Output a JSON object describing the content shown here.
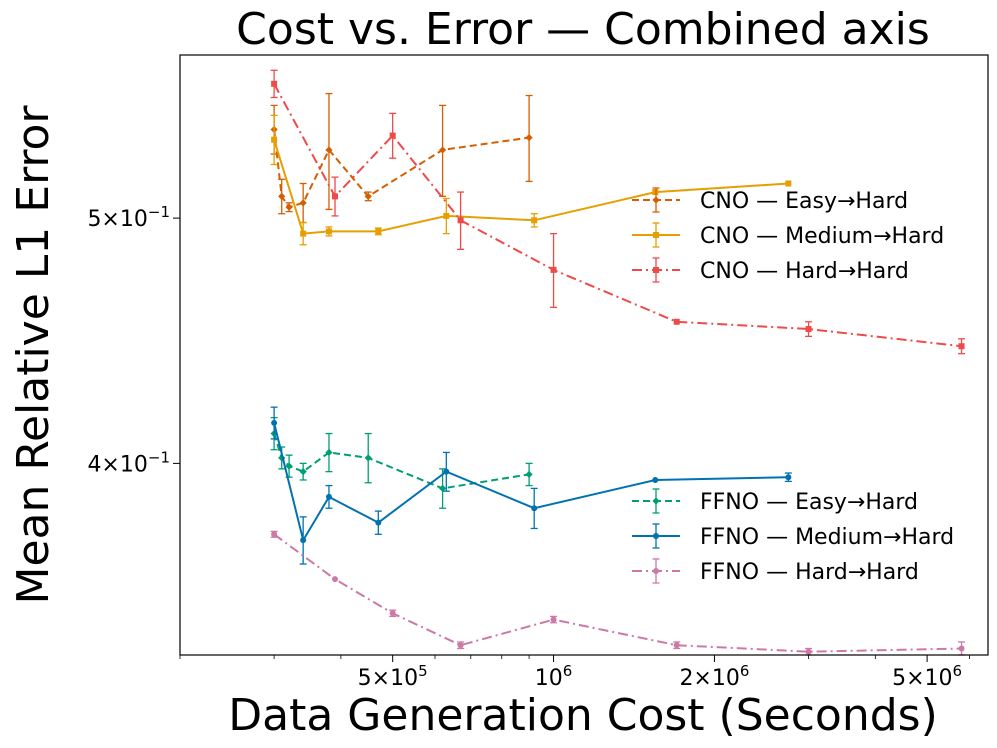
{
  "chart_data": {
    "type": "line",
    "title": "Cost vs. Error — Combined axis",
    "xlabel": "Data Generation Cost (Seconds)",
    "ylabel": "Mean Relative L1 Error",
    "xscale": "log",
    "yscale": "log",
    "xlim": [
      200000,
      6500000
    ],
    "ylim": [
      0.336,
      0.58
    ],
    "x_ticks": [
      {
        "value": 500000,
        "mantissa": "5×10",
        "exp": "5"
      },
      {
        "value": 1000000,
        "mantissa": "10",
        "exp": "6"
      },
      {
        "value": 2000000,
        "mantissa": "2×10",
        "exp": "6"
      },
      {
        "value": 5000000,
        "mantissa": "5×10",
        "exp": "6"
      }
    ],
    "y_ticks": [
      {
        "value": 0.4,
        "mantissa": "4×10",
        "exp": "−1"
      },
      {
        "value": 0.5,
        "mantissa": "5×10",
        "exp": "−1"
      }
    ],
    "legends": [
      {
        "placement": "right-middle",
        "entries": [
          "CNO  — Easy→Hard",
          "CNO  — Medium→Hard",
          "CNO  — Hard→Hard"
        ]
      },
      {
        "placement": "right-bottom",
        "entries": [
          "FFNO — Easy→Hard",
          "FFNO — Medium→Hard",
          "FFNO — Hard→Hard"
        ]
      }
    ],
    "series": [
      {
        "name": "CNO  — Easy→Hard",
        "color": "#d55e00",
        "dash": "dashed",
        "marker": "diamond",
        "x": [
          300000,
          310000,
          320000,
          340000,
          380000,
          450000,
          620000,
          900000
        ],
        "y": [
          0.542,
          0.51,
          0.505,
          0.507,
          0.532,
          0.51,
          0.532,
          0.538
        ],
        "err": [
          0.012,
          0.008,
          0.002,
          0.009,
          0.028,
          0.002,
          0.022,
          0.021
        ]
      },
      {
        "name": "CNO  — Medium→Hard",
        "color": "#e69f00",
        "dash": "solid",
        "marker": "square",
        "x": [
          300000,
          340000,
          380000,
          470000,
          630000,
          920000,
          1550000,
          2750000
        ],
        "y": [
          0.537,
          0.493,
          0.494,
          0.494,
          0.501,
          0.499,
          0.512,
          0.516
        ],
        "err": [
          0.012,
          0.005,
          0.002,
          0.0015,
          0.008,
          0.003,
          0.0,
          0.0
        ]
      },
      {
        "name": "CNO  — Hard→Hard",
        "color": "#ef4a4a",
        "dash": "dashdot",
        "marker": "square",
        "x": [
          300000,
          390000,
          500000,
          670000,
          1000000,
          1700000,
          3000000,
          5800000
        ],
        "y": [
          0.565,
          0.51,
          0.539,
          0.499,
          0.477,
          0.455,
          0.452,
          0.445
        ],
        "err": [
          0.007,
          0.009,
          0.011,
          0.013,
          0.016,
          0.0,
          0.003,
          0.003
        ]
      },
      {
        "name": "FFNO — Easy→Hard",
        "color": "#009e73",
        "dash": "dashed",
        "marker": "diamond",
        "x": [
          300000,
          310000,
          320000,
          340000,
          380000,
          450000,
          620000,
          900000
        ],
        "y": [
          0.411,
          0.402,
          0.399,
          0.397,
          0.404,
          0.402,
          0.391,
          0.396
        ],
        "err": [
          0.006,
          0.004,
          0.004,
          0.003,
          0.007,
          0.009,
          0.007,
          0.004
        ]
      },
      {
        "name": "FFNO — Medium→Hard",
        "color": "#0072b2",
        "dash": "solid",
        "marker": "circle",
        "x": [
          300000,
          340000,
          380000,
          470000,
          630000,
          920000,
          1550000,
          2750000
        ],
        "y": [
          0.415,
          0.373,
          0.388,
          0.379,
          0.397,
          0.384,
          0.394,
          0.395
        ],
        "err": [
          0.006,
          0.008,
          0.004,
          0.004,
          0.007,
          0.007,
          0.0,
          0.0015
        ]
      },
      {
        "name": "FFNO — Hard→Hard",
        "color": "#cc79a7",
        "dash": "dashdot",
        "marker": "circle",
        "x": [
          300000,
          390000,
          500000,
          670000,
          1000000,
          1700000,
          3000000,
          5800000
        ],
        "y": [
          0.375,
          0.36,
          0.349,
          0.339,
          0.347,
          0.339,
          0.337,
          0.338
        ],
        "err": [
          0.001,
          0.0,
          0.001,
          0.001,
          0.001,
          0.001,
          0.001,
          0.002
        ]
      }
    ]
  }
}
